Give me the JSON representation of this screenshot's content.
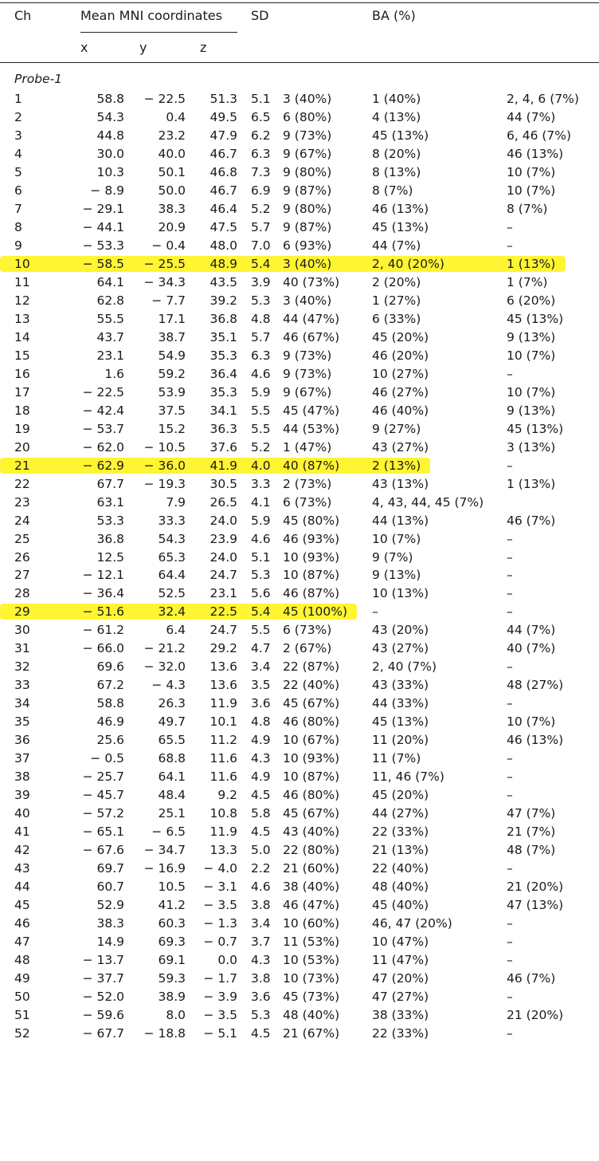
{
  "header": {
    "ch": "Ch",
    "mni": "Mean MNI coordinates",
    "x": "x",
    "y": "y",
    "z": "z",
    "sd": "SD",
    "ba": "BA (%)"
  },
  "section_label": "Probe-1",
  "highlight_color": "#fff200",
  "highlighted_channels": [
    "10",
    "21",
    "29"
  ],
  "rows": [
    {
      "ch": "1",
      "x": "58.8",
      "y": "− 22.5",
      "z": "51.3",
      "sd": "5.1",
      "b1": "3 (40%)",
      "b2": "1 (40%)",
      "b3": "2, 4, 6 (7%)"
    },
    {
      "ch": "2",
      "x": "54.3",
      "y": "0.4",
      "z": "49.5",
      "sd": "6.5",
      "b1": "6 (80%)",
      "b2": "4 (13%)",
      "b3": "44 (7%)"
    },
    {
      "ch": "3",
      "x": "44.8",
      "y": "23.2",
      "z": "47.9",
      "sd": "6.2",
      "b1": "9 (73%)",
      "b2": "45 (13%)",
      "b3": "6, 46 (7%)"
    },
    {
      "ch": "4",
      "x": "30.0",
      "y": "40.0",
      "z": "46.7",
      "sd": "6.3",
      "b1": "9 (67%)",
      "b2": "8 (20%)",
      "b3": "46 (13%)"
    },
    {
      "ch": "5",
      "x": "10.3",
      "y": "50.1",
      "z": "46.8",
      "sd": "7.3",
      "b1": "9 (80%)",
      "b2": "8 (13%)",
      "b3": "10 (7%)"
    },
    {
      "ch": "6",
      "x": "− 8.9",
      "y": "50.0",
      "z": "46.7",
      "sd": "6.9",
      "b1": "9 (87%)",
      "b2": "8 (7%)",
      "b3": "10 (7%)"
    },
    {
      "ch": "7",
      "x": "− 29.1",
      "y": "38.3",
      "z": "46.4",
      "sd": "5.2",
      "b1": "9 (80%)",
      "b2": "46 (13%)",
      "b3": "8 (7%)"
    },
    {
      "ch": "8",
      "x": "− 44.1",
      "y": "20.9",
      "z": "47.5",
      "sd": "5.7",
      "b1": "9 (87%)",
      "b2": "45 (13%)",
      "b3": "–"
    },
    {
      "ch": "9",
      "x": "− 53.3",
      "y": "− 0.4",
      "z": "48.0",
      "sd": "7.0",
      "b1": "6 (93%)",
      "b2": "44 (7%)",
      "b3": "–"
    },
    {
      "ch": "10",
      "x": "− 58.5",
      "y": "− 25.5",
      "z": "48.9",
      "sd": "5.4",
      "b1": "3 (40%)",
      "b2": "2, 40 (20%)",
      "b3": "1 (13%)"
    },
    {
      "ch": "11",
      "x": "64.1",
      "y": "− 34.3",
      "z": "43.5",
      "sd": "3.9",
      "b1": "40 (73%)",
      "b2": "2 (20%)",
      "b3": "1 (7%)"
    },
    {
      "ch": "12",
      "x": "62.8",
      "y": "− 7.7",
      "z": "39.2",
      "sd": "5.3",
      "b1": "3 (40%)",
      "b2": "1 (27%)",
      "b3": "6 (20%)"
    },
    {
      "ch": "13",
      "x": "55.5",
      "y": "17.1",
      "z": "36.8",
      "sd": "4.8",
      "b1": "44 (47%)",
      "b2": "6 (33%)",
      "b3": "45 (13%)"
    },
    {
      "ch": "14",
      "x": "43.7",
      "y": "38.7",
      "z": "35.1",
      "sd": "5.7",
      "b1": "46 (67%)",
      "b2": "45 (20%)",
      "b3": "9 (13%)"
    },
    {
      "ch": "15",
      "x": "23.1",
      "y": "54.9",
      "z": "35.3",
      "sd": "6.3",
      "b1": "9 (73%)",
      "b2": "46 (20%)",
      "b3": "10 (7%)"
    },
    {
      "ch": "16",
      "x": "1.6",
      "y": "59.2",
      "z": "36.4",
      "sd": "4.6",
      "b1": "9 (73%)",
      "b2": "10 (27%)",
      "b3": "–"
    },
    {
      "ch": "17",
      "x": "− 22.5",
      "y": "53.9",
      "z": "35.3",
      "sd": "5.9",
      "b1": "9 (67%)",
      "b2": "46 (27%)",
      "b3": "10 (7%)"
    },
    {
      "ch": "18",
      "x": "− 42.4",
      "y": "37.5",
      "z": "34.1",
      "sd": "5.5",
      "b1": "45 (47%)",
      "b2": "46 (40%)",
      "b3": "9 (13%)"
    },
    {
      "ch": "19",
      "x": "− 53.7",
      "y": "15.2",
      "z": "36.3",
      "sd": "5.5",
      "b1": "44 (53%)",
      "b2": "9 (27%)",
      "b3": "45 (13%)"
    },
    {
      "ch": "20",
      "x": "− 62.0",
      "y": "− 10.5",
      "z": "37.6",
      "sd": "5.2",
      "b1": "1 (47%)",
      "b2": "43 (27%)",
      "b3": "3 (13%)"
    },
    {
      "ch": "21",
      "x": "− 62.9",
      "y": "− 36.0",
      "z": "41.9",
      "sd": "4.0",
      "b1": "40 (87%)",
      "b2": "2 (13%)",
      "b3": "–"
    },
    {
      "ch": "22",
      "x": "67.7",
      "y": "− 19.3",
      "z": "30.5",
      "sd": "3.3",
      "b1": "2 (73%)",
      "b2": "43 (13%)",
      "b3": "1 (13%)"
    },
    {
      "ch": "23",
      "x": "63.1",
      "y": "7.9",
      "z": "26.5",
      "sd": "4.1",
      "b1": "6 (73%)",
      "b2": "4, 43, 44, 45 (7%)",
      "b3": ""
    },
    {
      "ch": "24",
      "x": "53.3",
      "y": "33.3",
      "z": "24.0",
      "sd": "5.9",
      "b1": "45 (80%)",
      "b2": "44 (13%)",
      "b3": "46 (7%)"
    },
    {
      "ch": "25",
      "x": "36.8",
      "y": "54.3",
      "z": "23.9",
      "sd": "4.6",
      "b1": "46 (93%)",
      "b2": "10 (7%)",
      "b3": "–"
    },
    {
      "ch": "26",
      "x": "12.5",
      "y": "65.3",
      "z": "24.0",
      "sd": "5.1",
      "b1": "10 (93%)",
      "b2": "9 (7%)",
      "b3": "–"
    },
    {
      "ch": "27",
      "x": "− 12.1",
      "y": "64.4",
      "z": "24.7",
      "sd": "5.3",
      "b1": "10 (87%)",
      "b2": "9 (13%)",
      "b3": "–"
    },
    {
      "ch": "28",
      "x": "− 36.4",
      "y": "52.5",
      "z": "23.1",
      "sd": "5.6",
      "b1": "46 (87%)",
      "b2": "10 (13%)",
      "b3": "–"
    },
    {
      "ch": "29",
      "x": "− 51.6",
      "y": "32.4",
      "z": "22.5",
      "sd": "5.4",
      "b1": "45 (100%)",
      "b2": "–",
      "b3": "–"
    },
    {
      "ch": "30",
      "x": "− 61.2",
      "y": "6.4",
      "z": "24.7",
      "sd": "5.5",
      "b1": "6 (73%)",
      "b2": "43 (20%)",
      "b3": "44 (7%)"
    },
    {
      "ch": "31",
      "x": "− 66.0",
      "y": "− 21.2",
      "z": "29.2",
      "sd": "4.7",
      "b1": "2 (67%)",
      "b2": "43 (27%)",
      "b3": "40 (7%)"
    },
    {
      "ch": "32",
      "x": "69.6",
      "y": "− 32.0",
      "z": "13.6",
      "sd": "3.4",
      "b1": "22 (87%)",
      "b2": "2, 40 (7%)",
      "b3": "–"
    },
    {
      "ch": "33",
      "x": "67.2",
      "y": "− 4.3",
      "z": "13.6",
      "sd": "3.5",
      "b1": "22 (40%)",
      "b2": "43 (33%)",
      "b3": "48 (27%)"
    },
    {
      "ch": "34",
      "x": "58.8",
      "y": "26.3",
      "z": "11.9",
      "sd": "3.6",
      "b1": "45 (67%)",
      "b2": "44 (33%)",
      "b3": "–"
    },
    {
      "ch": "35",
      "x": "46.9",
      "y": "49.7",
      "z": "10.1",
      "sd": "4.8",
      "b1": "46 (80%)",
      "b2": "45 (13%)",
      "b3": "10 (7%)"
    },
    {
      "ch": "36",
      "x": "25.6",
      "y": "65.5",
      "z": "11.2",
      "sd": "4.9",
      "b1": "10 (67%)",
      "b2": "11 (20%)",
      "b3": "46 (13%)"
    },
    {
      "ch": "37",
      "x": "− 0.5",
      "y": "68.8",
      "z": "11.6",
      "sd": "4.3",
      "b1": "10 (93%)",
      "b2": "11 (7%)",
      "b3": "–"
    },
    {
      "ch": "38",
      "x": "− 25.7",
      "y": "64.1",
      "z": "11.6",
      "sd": "4.9",
      "b1": "10 (87%)",
      "b2": "11, 46 (7%)",
      "b3": "–"
    },
    {
      "ch": "39",
      "x": "− 45.7",
      "y": "48.4",
      "z": "9.2",
      "sd": "4.5",
      "b1": "46 (80%)",
      "b2": "45 (20%)",
      "b3": "–"
    },
    {
      "ch": "40",
      "x": "− 57.2",
      "y": "25.1",
      "z": "10.8",
      "sd": "5.8",
      "b1": "45 (67%)",
      "b2": "44 (27%)",
      "b3": "47 (7%)"
    },
    {
      "ch": "41",
      "x": "− 65.1",
      "y": "− 6.5",
      "z": "11.9",
      "sd": "4.5",
      "b1": "43 (40%)",
      "b2": "22 (33%)",
      "b3": "21 (7%)"
    },
    {
      "ch": "42",
      "x": "− 67.6",
      "y": "− 34.7",
      "z": "13.3",
      "sd": "5.0",
      "b1": "22 (80%)",
      "b2": "21 (13%)",
      "b3": "48 (7%)"
    },
    {
      "ch": "43",
      "x": "69.7",
      "y": "− 16.9",
      "z": "− 4.0",
      "sd": "2.2",
      "b1": "21 (60%)",
      "b2": "22 (40%)",
      "b3": "–"
    },
    {
      "ch": "44",
      "x": "60.7",
      "y": "10.5",
      "z": "− 3.1",
      "sd": "4.6",
      "b1": "38 (40%)",
      "b2": "48 (40%)",
      "b3": "21 (20%)"
    },
    {
      "ch": "45",
      "x": "52.9",
      "y": "41.2",
      "z": "− 3.5",
      "sd": "3.8",
      "b1": "46 (47%)",
      "b2": "45 (40%)",
      "b3": "47 (13%)"
    },
    {
      "ch": "46",
      "x": "38.3",
      "y": "60.3",
      "z": "− 1.3",
      "sd": "3.4",
      "b1": "10 (60%)",
      "b2": "46, 47 (20%)",
      "b3": "–"
    },
    {
      "ch": "47",
      "x": "14.9",
      "y": "69.3",
      "z": "− 0.7",
      "sd": "3.7",
      "b1": "11 (53%)",
      "b2": "10 (47%)",
      "b3": "–"
    },
    {
      "ch": "48",
      "x": "− 13.7",
      "y": "69.1",
      "z": "0.0",
      "sd": "4.3",
      "b1": "10 (53%)",
      "b2": "11 (47%)",
      "b3": "–"
    },
    {
      "ch": "49",
      "x": "− 37.7",
      "y": "59.3",
      "z": "− 1.7",
      "sd": "3.8",
      "b1": "10 (73%)",
      "b2": "47 (20%)",
      "b3": "46 (7%)"
    },
    {
      "ch": "50",
      "x": "− 52.0",
      "y": "38.9",
      "z": "− 3.9",
      "sd": "3.6",
      "b1": "45 (73%)",
      "b2": "47 (27%)",
      "b3": "–"
    },
    {
      "ch": "51",
      "x": "− 59.6",
      "y": "8.0",
      "z": "− 3.5",
      "sd": "5.3",
      "b1": "48 (40%)",
      "b2": "38 (33%)",
      "b3": "21 (20%)"
    },
    {
      "ch": "52",
      "x": "− 67.7",
      "y": "− 18.8",
      "z": "− 5.1",
      "sd": "4.5",
      "b1": "21 (67%)",
      "b2": "22 (33%)",
      "b3": "–"
    }
  ]
}
